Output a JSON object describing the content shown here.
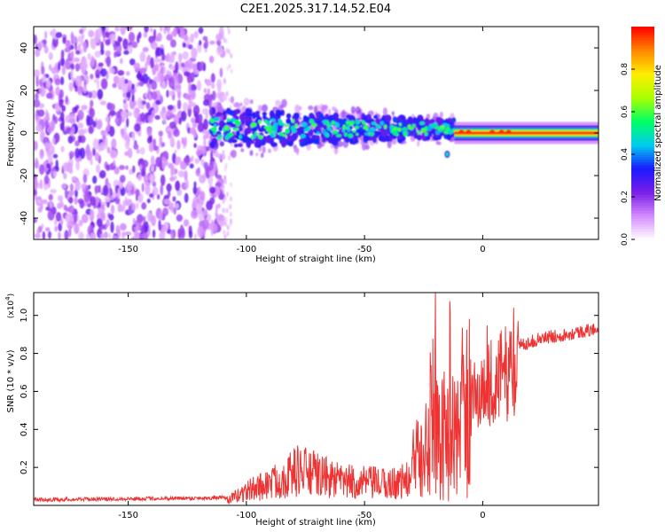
{
  "chart_data": [
    {
      "type": "heatmap",
      "title": "C2E1.2025.317.14.52.E04",
      "xlabel": "Height of straight line (km)",
      "ylabel": "Frequency (Hz)",
      "xlim": [
        -190,
        49
      ],
      "ylim": [
        -50,
        50
      ],
      "xticks": [
        -150,
        -100,
        -50,
        0
      ],
      "yticks": [
        -40,
        -20,
        0,
        20,
        40
      ],
      "colorbar": {
        "label": "Normalized spectral amplitude",
        "range": [
          0,
          1
        ],
        "ticks": [
          0.0,
          0.2,
          0.4,
          0.6,
          0.8
        ],
        "tick_labels": [
          "0.0",
          "0.2",
          "0.4",
          "0.6",
          "0.8"
        ],
        "colors": [
          "#ffffff",
          "#d58cff",
          "#7b1fe8",
          "#1a1aff",
          "#00ccee",
          "#00ff66",
          "#aaff00",
          "#ffee00",
          "#ff8800",
          "#ff0000"
        ]
      },
      "regions": [
        {
          "name": "noise",
          "x": [
            -190,
            -110
          ],
          "freq": [
            -50,
            50
          ],
          "amplitude": [
            0.05,
            0.25
          ]
        },
        {
          "name": "scattered band",
          "x": [
            -115,
            -12
          ],
          "freq_center": 2,
          "freq_halfwidth": [
            9,
            4
          ],
          "amplitude": [
            0.2,
            0.7
          ]
        },
        {
          "name": "coherent line",
          "x": [
            -12,
            49
          ],
          "freq_center": 0,
          "freq_halfwidth": 2,
          "amplitude": [
            0.8,
            1.0
          ]
        }
      ]
    },
    {
      "type": "line",
      "xlabel": "Height of straight line (km)",
      "ylabel": "SNR (10 * v/v)",
      "scale_label": "(x10",
      "scale_exponent": "4",
      "scale_suffix": ")",
      "xlim": [
        -190,
        49
      ],
      "ylim": [
        0,
        1.12
      ],
      "xticks": [
        -150,
        -100,
        -50,
        0
      ],
      "yticks": [
        0.2,
        0.4,
        0.6,
        0.8,
        1.0
      ],
      "color": "#ee3333",
      "envelope": {
        "x": [
          -190,
          -108,
          -100,
          -85,
          -78,
          -60,
          -40,
          -30,
          -27,
          -22,
          -18,
          -15,
          -10,
          -5,
          0,
          8,
          15,
          25,
          35,
          49
        ],
        "y": [
          0.03,
          0.04,
          0.12,
          0.22,
          0.3,
          0.2,
          0.18,
          0.22,
          0.5,
          0.7,
          0.55,
          0.45,
          0.55,
          0.62,
          0.7,
          0.78,
          0.84,
          0.88,
          0.9,
          0.93
        ]
      }
    }
  ]
}
